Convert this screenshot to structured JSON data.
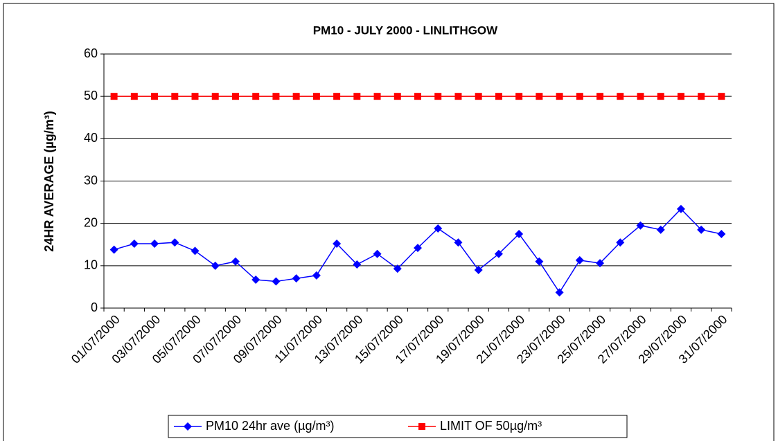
{
  "chart_data": {
    "type": "line",
    "title": "PM10 - JULY 2000 - LINLITHGOW",
    "y_label": "24HR AVERAGE (µg/m³)",
    "categories": [
      "01/07/2000",
      null,
      "03/07/2000",
      null,
      "05/07/2000",
      null,
      "07/07/2000",
      null,
      "09/07/2000",
      null,
      "11/07/2000",
      null,
      "13/07/2000",
      null,
      "15/07/2000",
      null,
      "17/07/2000",
      null,
      "19/07/2000",
      null,
      "21/07/2000",
      null,
      "23/07/2000",
      null,
      "25/07/2000",
      null,
      "27/07/2000",
      null,
      "29/07/2000",
      null,
      "31/07/2000"
    ],
    "series": [
      {
        "name": "PM10 24hr ave (µg/m³)",
        "color": "#0000ff",
        "marker": "diamond",
        "values": [
          13.8,
          15.2,
          15.2,
          15.5,
          13.5,
          10,
          11,
          6.7,
          6.3,
          7,
          7.7,
          15.2,
          10.3,
          12.8,
          9.3,
          14.2,
          18.8,
          15.5,
          9,
          12.8,
          17.5,
          11,
          3.7,
          11.3,
          10.6,
          15.5,
          19.5,
          18.5,
          23.4,
          18.5,
          17.5
        ]
      },
      {
        "name": "LIMIT OF 50µg/m³",
        "color": "#ff0000",
        "marker": "square",
        "values": [
          50,
          50,
          50,
          50,
          50,
          50,
          50,
          50,
          50,
          50,
          50,
          50,
          50,
          50,
          50,
          50,
          50,
          50,
          50,
          50,
          50,
          50,
          50,
          50,
          50,
          50,
          50,
          50,
          50,
          50,
          50
        ]
      }
    ],
    "ylim": [
      0,
      60
    ],
    "yticks": [
      0,
      10,
      20,
      30,
      40,
      50,
      60
    ],
    "grid": true,
    "legend": "bottom"
  }
}
